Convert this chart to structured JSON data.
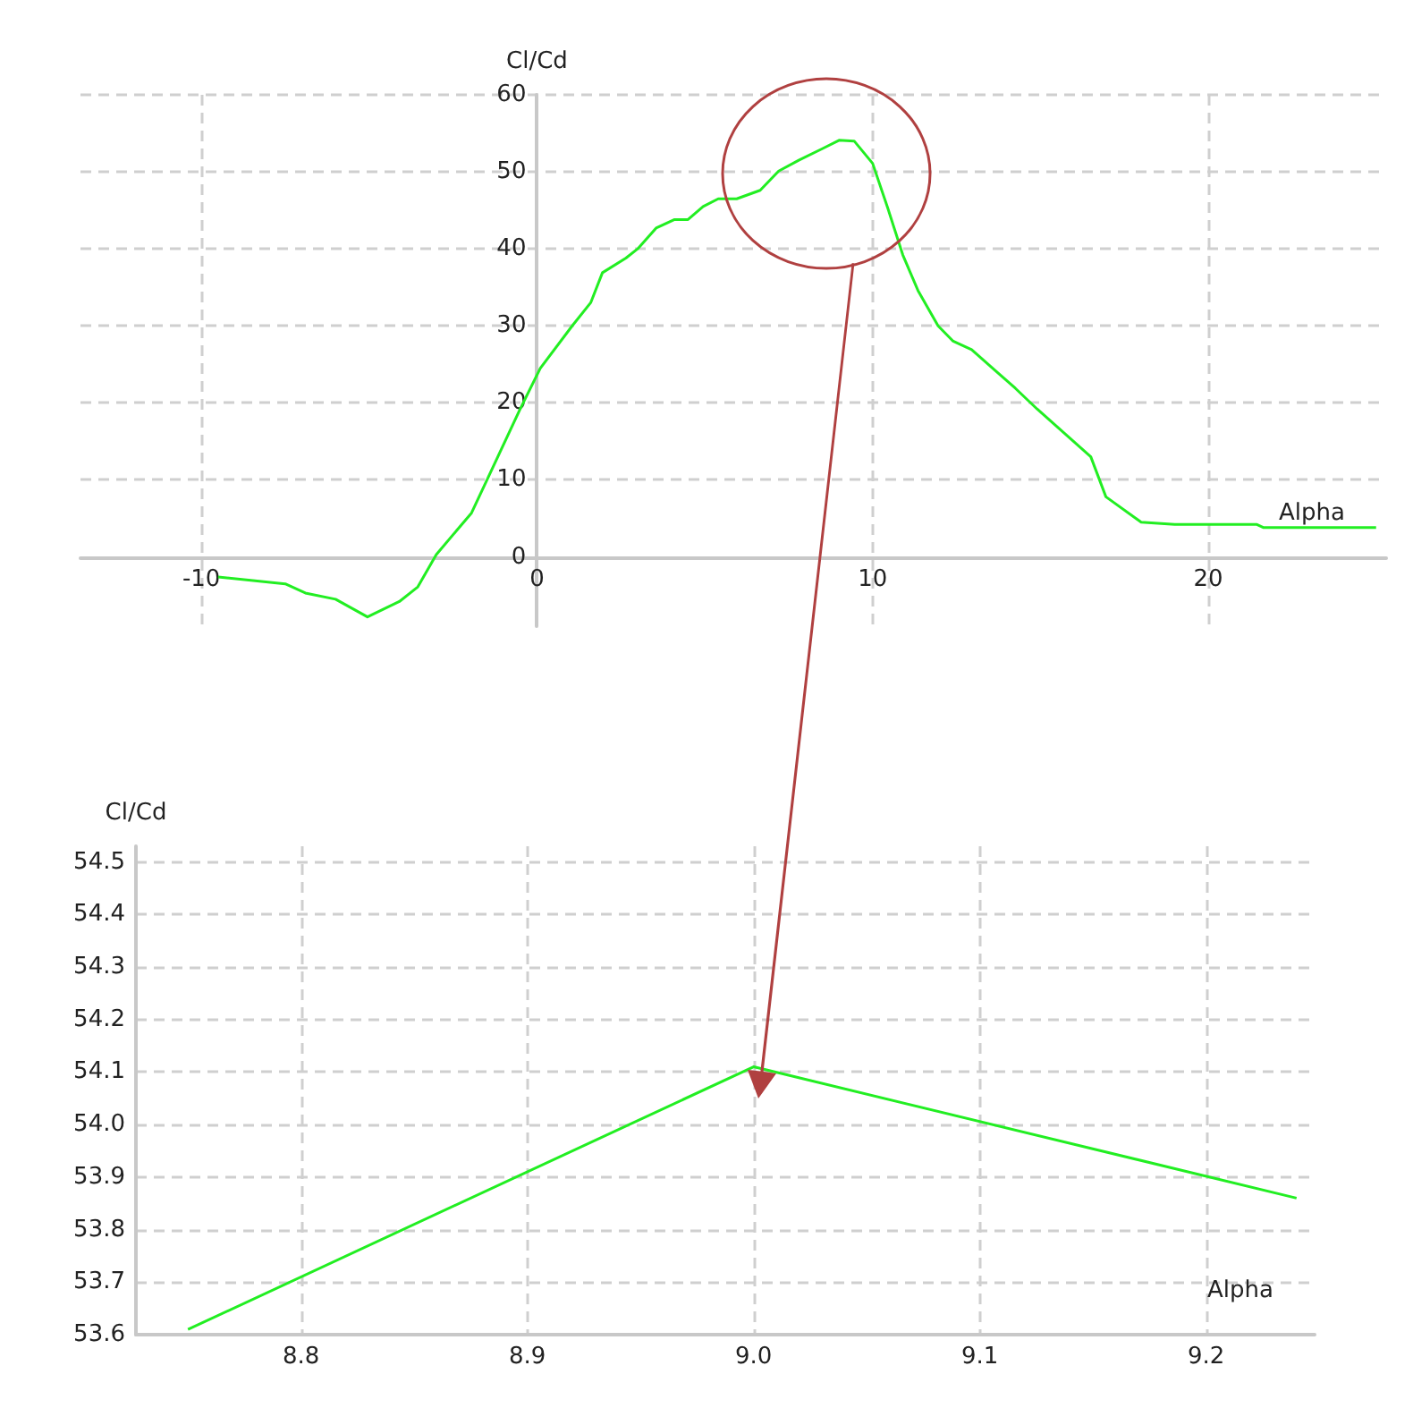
{
  "chart_data": [
    {
      "type": "line",
      "xlabel": "Alpha",
      "ylabel": "Cl/Cd",
      "color": "#22ee22",
      "marker": "none",
      "grid": true,
      "x": [
        -9.5,
        -7.5,
        -6.9,
        -6.0,
        -5.05,
        -4.1,
        -3.55,
        -3.0,
        -1.95,
        -1.5,
        -0.5,
        0.1,
        1.05,
        1.6,
        1.95,
        2.65,
        3.0,
        3.55,
        4.1,
        4.5,
        4.95,
        5.4,
        5.95,
        6.65,
        7.2,
        7.8,
        8.5,
        9.0,
        9.45,
        10.0,
        10.45,
        10.9,
        11.35,
        11.95,
        12.4,
        12.95,
        13.65,
        14.25,
        14.9,
        15.7,
        16.5,
        16.95,
        18.0,
        19.0,
        21.45,
        21.65,
        25.0
      ],
      "values": [
        -2.6,
        -3.5,
        -4.7,
        -5.5,
        -7.8,
        -5.8,
        -3.9,
        0.3,
        5.7,
        9.9,
        19.2,
        24.5,
        30,
        33,
        36.9,
        38.8,
        40,
        42.7,
        43.8,
        43.8,
        45.5,
        46.5,
        46.5,
        47.6,
        50.1,
        51.5,
        53,
        54.1,
        54,
        51.1,
        45.3,
        39.2,
        34.6,
        30,
        28,
        26.9,
        24.2,
        21.9,
        19.2,
        16.1,
        13,
        7.8,
        4.5,
        4.2,
        4.2,
        3.8,
        3.8
      ],
      "xlim": [
        -13.6,
        25.3
      ],
      "ylim": [
        -9,
        60
      ],
      "xticks": [
        -10,
        0,
        10,
        20
      ],
      "yticks": [
        0,
        10,
        20,
        30,
        40,
        50,
        60
      ]
    },
    {
      "type": "line",
      "xlabel": "Alpha",
      "ylabel": "Cl/Cd",
      "color": "#22ee22",
      "marker": "none",
      "grid": true,
      "x": [
        8.75,
        9.0,
        9.24
      ],
      "values": [
        53.61,
        54.11,
        53.86
      ],
      "xlim": [
        8.727,
        9.248
      ],
      "ylim": [
        53.6,
        54.53
      ],
      "xticks": [
        8.8,
        8.9,
        {
          "value": 9.0,
          "label": "9.0"
        },
        9.1,
        9.2
      ],
      "yticks": [
        53.6,
        53.7,
        53.8,
        53.9,
        {
          "value": 54.0,
          "label": "54.0"
        },
        54.1,
        54.2,
        54.3,
        54.4,
        54.5
      ]
    }
  ]
}
